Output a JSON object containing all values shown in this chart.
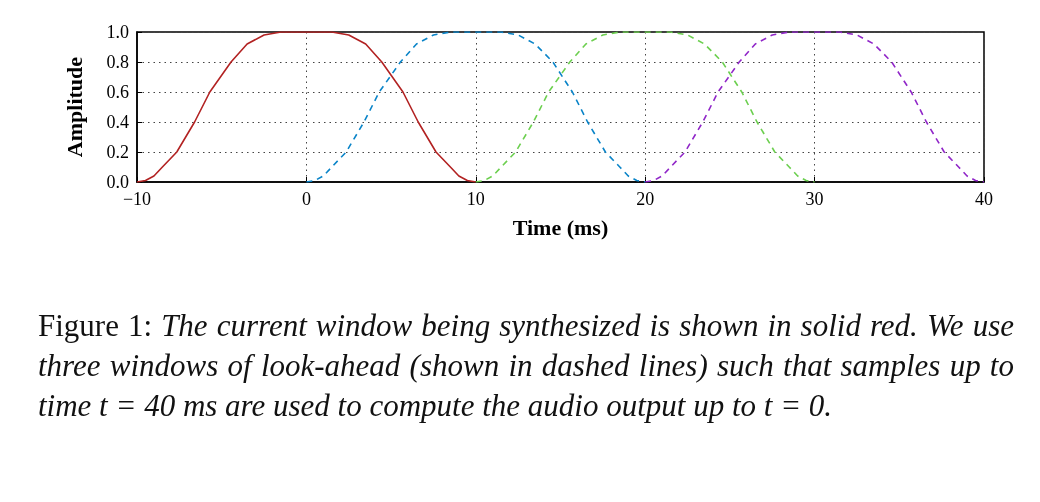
{
  "chart_data": {
    "type": "line",
    "xlabel": "Time (ms)",
    "ylabel": "Amplitude",
    "xlim": [
      -10,
      40
    ],
    "xticks": [
      {
        "value": -10,
        "label": "−10"
      },
      0,
      10,
      20,
      30,
      40
    ],
    "ylim": [
      0,
      1
    ],
    "yticks": [
      {
        "value": 0,
        "label": "0.0"
      },
      {
        "value": 0.2,
        "label": "0.2"
      },
      {
        "value": 0.4,
        "label": "0.4"
      },
      {
        "value": 0.6,
        "label": "0.6"
      },
      {
        "value": 0.8,
        "label": "0.8"
      },
      {
        "value": 1,
        "label": "1.0"
      }
    ],
    "grid": true,
    "marker": "none",
    "series": [
      {
        "color": "#b22222",
        "line_style": "solid",
        "x": [
          -10,
          -9.5,
          -9,
          -8.5,
          -7.65,
          -6.6,
          -5.7,
          -4.45,
          -3.5,
          -2.5,
          -1.5,
          0,
          1.5,
          2.5,
          3.5,
          4.45,
          5.7,
          6.6,
          7.65,
          8.5,
          9,
          9.5,
          10
        ],
        "values": [
          0,
          0.01,
          0.04,
          0.1,
          0.2,
          0.4,
          0.6,
          0.8,
          0.92,
          0.98,
          1,
          1,
          1,
          0.98,
          0.92,
          0.8,
          0.6,
          0.4,
          0.2,
          0.1,
          0.04,
          0.01,
          0
        ]
      },
      {
        "color": "#0a84c8",
        "line_style": "dashed",
        "x": [
          0,
          0.5,
          1,
          1.5,
          2.35,
          3.4,
          4.3,
          5.55,
          6.5,
          7.5,
          8.5,
          10,
          11.5,
          12.5,
          13.5,
          14.55,
          15.7,
          16.6,
          17.65,
          18.5,
          19,
          19.5,
          20
        ],
        "values": [
          0,
          0.01,
          0.04,
          0.1,
          0.2,
          0.4,
          0.6,
          0.8,
          0.92,
          0.98,
          1,
          1,
          1,
          0.98,
          0.92,
          0.8,
          0.6,
          0.4,
          0.2,
          0.1,
          0.04,
          0.01,
          0
        ]
      },
      {
        "color": "#6ccf4f",
        "line_style": "dashed",
        "x": [
          10,
          10.5,
          11,
          11.5,
          12.35,
          13.4,
          14.3,
          15.55,
          16.5,
          17.5,
          18.5,
          20,
          21.5,
          22.5,
          23.5,
          24.55,
          25.7,
          26.6,
          27.65,
          28.5,
          29,
          29.5,
          30
        ],
        "values": [
          0,
          0.01,
          0.04,
          0.1,
          0.2,
          0.4,
          0.6,
          0.8,
          0.92,
          0.98,
          1,
          1,
          1,
          0.98,
          0.92,
          0.8,
          0.6,
          0.4,
          0.2,
          0.1,
          0.04,
          0.01,
          0
        ]
      },
      {
        "color": "#9026c8",
        "line_style": "dashed",
        "x": [
          20,
          20.5,
          21,
          21.5,
          22.35,
          23.4,
          24.3,
          25.55,
          26.5,
          27.5,
          28.5,
          30,
          31.5,
          32.5,
          33.5,
          34.55,
          35.7,
          36.6,
          37.65,
          38.5,
          39,
          39.5,
          40
        ],
        "values": [
          0,
          0.01,
          0.04,
          0.1,
          0.2,
          0.4,
          0.6,
          0.8,
          0.92,
          0.98,
          1,
          1,
          1,
          0.98,
          0.92,
          0.8,
          0.6,
          0.4,
          0.2,
          0.1,
          0.04,
          0.01,
          0
        ]
      }
    ],
    "annotations": [
      "Figure 1: The current window being synthesized is shown in solid red. We use three windows of look-ahead (shown in dashed lines) such that samples up to time t = 40 ms are used to compute the audio output up to t = 0."
    ]
  }
}
